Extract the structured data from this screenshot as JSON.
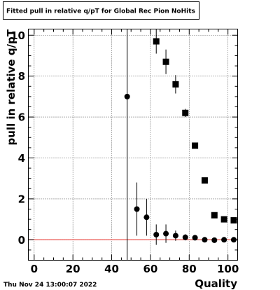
{
  "chart_data": {
    "type": "scatter",
    "title": "Fitted pull in relative q/pT for Global Rec Pion NoHits",
    "xlabel": "Quality",
    "ylabel": "pull in relative q/pT",
    "xlim": [
      -3,
      105
    ],
    "ylim": [
      -1,
      10.3
    ],
    "x_ticks": [
      0,
      20,
      40,
      60,
      80,
      100
    ],
    "x_tick_labels": [
      "0",
      "20",
      "40",
      "60",
      "80",
      "100"
    ],
    "y_ticks": [
      0,
      2,
      4,
      6,
      8,
      10
    ],
    "y_tick_labels": [
      "0",
      "2",
      "4",
      "6",
      "8",
      "10"
    ],
    "grid": true,
    "reference_line": {
      "y": 0,
      "color": "#e8251f"
    },
    "vertical_line": {
      "x": 48
    },
    "series": [
      {
        "marker": "circle",
        "color": "#000000",
        "points": [
          {
            "x": 48,
            "y": 7.0,
            "err": 0.0
          },
          {
            "x": 53,
            "y": 1.5,
            "err": 1.3
          },
          {
            "x": 58,
            "y": 1.1,
            "err": 0.9
          },
          {
            "x": 63,
            "y": 0.25,
            "err": 0.5
          },
          {
            "x": 68,
            "y": 0.3,
            "err": 0.45
          },
          {
            "x": 73,
            "y": 0.2,
            "err": 0.25
          },
          {
            "x": 78,
            "y": 0.12,
            "err": 0.15
          },
          {
            "x": 83,
            "y": 0.1,
            "err": 0.12
          },
          {
            "x": 88,
            "y": 0.0,
            "err": 0.1
          },
          {
            "x": 93,
            "y": -0.02,
            "err": 0.08
          },
          {
            "x": 98,
            "y": 0.0,
            "err": 0.08
          },
          {
            "x": 103,
            "y": 0.0,
            "err": 0.08
          }
        ]
      },
      {
        "marker": "square",
        "color": "#000000",
        "points": [
          {
            "x": 63,
            "y": 9.7,
            "err": 0.6
          },
          {
            "x": 68,
            "y": 8.7,
            "err": 0.6
          },
          {
            "x": 73,
            "y": 7.6,
            "err": 0.45
          },
          {
            "x": 78,
            "y": 6.2,
            "err": 0.2
          },
          {
            "x": 83,
            "y": 4.6,
            "err": 0.1
          },
          {
            "x": 88,
            "y": 2.9,
            "err": 0.1
          },
          {
            "x": 93,
            "y": 1.2,
            "err": 0.1
          },
          {
            "x": 98,
            "y": 1.0,
            "err": 0.1
          },
          {
            "x": 103,
            "y": 0.95,
            "err": 0.1
          }
        ]
      }
    ]
  },
  "footer": {
    "timestamp": "Thu Nov 24 13:00:07 2022"
  }
}
